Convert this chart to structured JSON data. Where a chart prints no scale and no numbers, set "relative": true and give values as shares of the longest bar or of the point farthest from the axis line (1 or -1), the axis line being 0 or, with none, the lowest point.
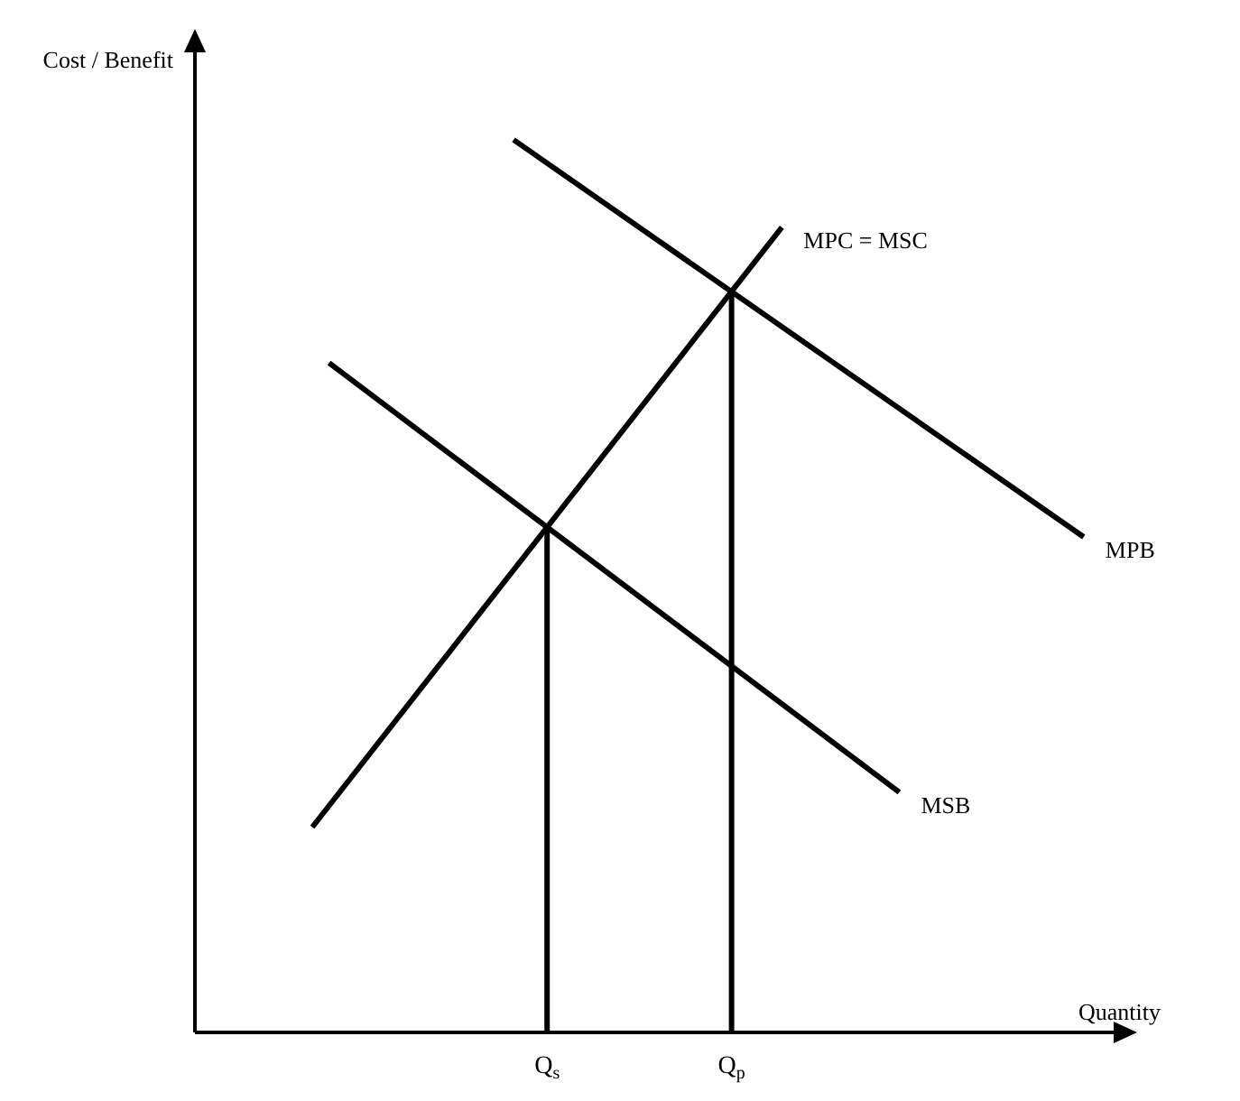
{
  "chart_data": {
    "type": "line",
    "relative": true,
    "ylabel": "Cost / Benefit",
    "xlabel": "Quantity",
    "categories": [
      null,
      null,
      null,
      null,
      null,
      null,
      null,
      null,
      null,
      null,
      null,
      null,
      null,
      null,
      null,
      null,
      null,
      null,
      null,
      null,
      null,
      "Q$_{s}$",
      null,
      null,
      null,
      null,
      null,
      null,
      null,
      null,
      null,
      null,
      "Q$_{p}$",
      null,
      null,
      null,
      null,
      null,
      null,
      null,
      null,
      null,
      null,
      null,
      null,
      null,
      null,
      null,
      null,
      null,
      null,
      null,
      null,
      null,
      null,
      null
    ],
    "tick_labels": "x",
    "legend": false,
    "marker": "none",
    "ref_lines": [
      {
        "axis": "x",
        "value": "Q$_{s}$"
      },
      {
        "axis": "x",
        "value": "Q$_{p}$"
      }
    ],
    "series": [
      {
        "name": "MPB",
        "color": "#000000",
        "values": [
          null,
          null,
          null,
          null,
          null,
          null,
          null,
          null,
          null,
          null,
          null,
          null,
          null,
          null,
          null,
          null,
          null,
          null,
          null,
          1,
          null,
          null,
          null,
          null,
          null,
          null,
          null,
          null,
          null,
          null,
          null,
          null,
          null,
          null,
          null,
          null,
          null,
          null,
          null,
          null,
          null,
          null,
          null,
          null,
          null,
          null,
          null,
          null,
          null,
          null,
          null,
          null,
          null,
          0.555,
          null,
          null
        ]
      },
      {
        "name": "MPC = MSC",
        "color": "#000000",
        "values": [
          null,
          null,
          null,
          null,
          null,
          null,
          null,
          0.23,
          null,
          null,
          null,
          null,
          null,
          null,
          null,
          null,
          null,
          null,
          null,
          null,
          null,
          null,
          null,
          null,
          null,
          null,
          null,
          null,
          null,
          null,
          null,
          null,
          null,
          null,
          null,
          0.902,
          null,
          null,
          null,
          null,
          null,
          null,
          null,
          null,
          null,
          null,
          null,
          null,
          null,
          null,
          null,
          null,
          null,
          null,
          null,
          null
        ]
      },
      {
        "name": "MSB",
        "color": "#000000",
        "values": [
          null,
          null,
          null,
          null,
          null,
          null,
          null,
          null,
          0.75,
          null,
          null,
          null,
          null,
          null,
          null,
          null,
          null,
          null,
          null,
          null,
          null,
          null,
          null,
          null,
          null,
          null,
          null,
          null,
          null,
          null,
          null,
          null,
          null,
          null,
          null,
          null,
          null,
          null,
          null,
          null,
          null,
          null,
          0.269,
          null,
          null,
          null,
          null,
          null,
          null,
          null,
          null,
          null,
          null,
          null,
          null,
          null
        ]
      }
    ]
  }
}
